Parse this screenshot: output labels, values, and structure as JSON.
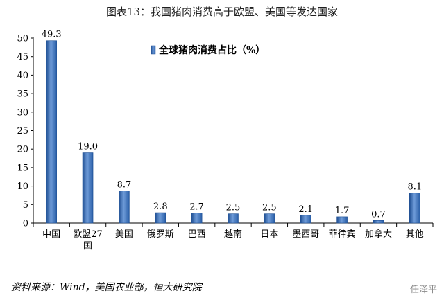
{
  "header": {
    "title": "图表13：我国猪肉消费高于欧盟、美国等发达国家"
  },
  "footer": {
    "source": "资料来源：Wind，美国农业部，恒大研究院",
    "watermark": "任泽平"
  },
  "chart_data": {
    "type": "bar",
    "categories": [
      "中国",
      "欧盟27国",
      "美国",
      "俄罗斯",
      "巴西",
      "越南",
      "日本",
      "墨西哥",
      "菲律宾",
      "加拿大",
      "其他"
    ],
    "series": [
      {
        "name": "全球猪肉消费占比（%）",
        "values": [
          49.3,
          19.0,
          8.7,
          2.8,
          2.7,
          2.5,
          2.5,
          2.1,
          1.7,
          0.7,
          8.1
        ]
      }
    ],
    "data_labels": [
      "49.3",
      "19.0",
      "8.7",
      "2.8",
      "2.7",
      "2.5",
      "2.5",
      "2.1",
      "1.7",
      "0.7",
      "8.1"
    ],
    "ylim": [
      0,
      50
    ],
    "yticks": [
      0,
      5,
      10,
      15,
      20,
      25,
      30,
      35,
      40,
      45,
      50
    ],
    "legend_position": "top-center",
    "grid": false,
    "colors": {
      "bar_dark": "#2a5fa8",
      "bar_light": "#8fb3e3",
      "axis": "#000000"
    }
  }
}
